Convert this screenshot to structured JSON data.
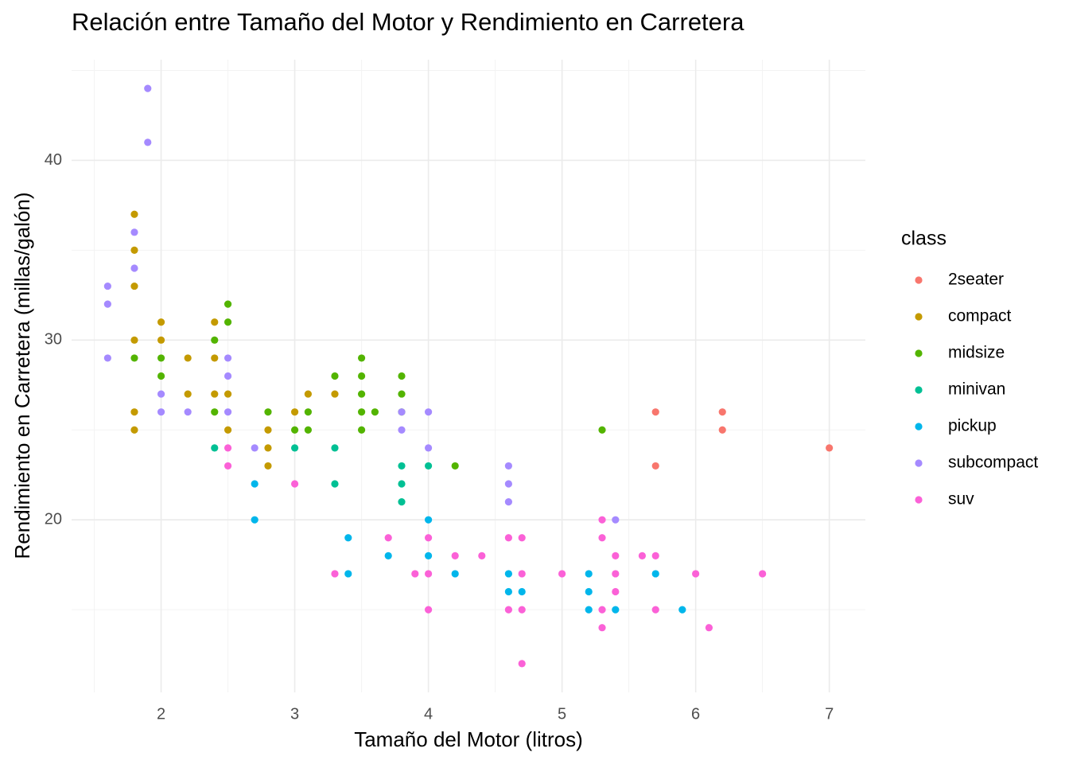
{
  "chart_data": {
    "type": "scatter",
    "title": "Relación entre Tamaño del Motor y Rendimiento en Carretera",
    "x_label": "Tamaño del Motor (litros)",
    "y_label": "Rendimiento en Carretera (millas/galón)",
    "legend_title": "class",
    "legend_position": "right",
    "grid": true,
    "xlim": [
      1.33,
      7.27
    ],
    "ylim": [
      10.4,
      45.6
    ],
    "xticks": [
      2,
      3,
      4,
      5,
      6,
      7
    ],
    "yticks": [
      20,
      30,
      40
    ],
    "x_minor_ticks": [
      1.5,
      2.5,
      3.5,
      4.5,
      5.5,
      6.5
    ],
    "y_minor_ticks": [
      15,
      25,
      35,
      45
    ],
    "series": [
      {
        "name": "2seater",
        "color": "#F8766D",
        "x": [
          5.7,
          6.2,
          6.2,
          5.7,
          7
        ],
        "y": [
          26,
          26,
          25,
          23,
          24
        ]
      },
      {
        "name": "compact",
        "color": "#C49A00",
        "x": [
          1.8,
          1.8,
          1.8,
          1.8,
          1.8,
          1.8,
          2,
          2,
          2.2,
          2.2,
          2.4,
          2.4,
          2.4,
          2.5,
          2.5,
          2.8,
          2.8,
          2.8,
          3,
          3.1,
          3.3
        ],
        "y": [
          37,
          35,
          33,
          30,
          26,
          25,
          31,
          30,
          29,
          27,
          31,
          29,
          27,
          27,
          25,
          25,
          24,
          23,
          26,
          27,
          27
        ]
      },
      {
        "name": "midsize",
        "color": "#53B400",
        "x": [
          1.8,
          2,
          2,
          2.4,
          2.4,
          2.5,
          2.5,
          2.8,
          3,
          3.1,
          3.1,
          3.3,
          3.5,
          3.5,
          3.5,
          3.5,
          3.5,
          3.6,
          3.8,
          3.8,
          3.8,
          4.2,
          5.3
        ],
        "y": [
          29,
          29,
          28,
          30,
          26,
          32,
          31,
          26,
          25,
          26,
          25,
          28,
          29,
          28,
          27,
          26,
          25,
          26,
          28,
          27,
          26,
          23,
          25
        ]
      },
      {
        "name": "minivan",
        "color": "#00C094",
        "x": [
          2.4,
          3,
          3.3,
          3.3,
          3.8,
          3.8,
          3.8,
          4
        ],
        "y": [
          24,
          24,
          24,
          22,
          23,
          22,
          21,
          23
        ]
      },
      {
        "name": "pickup",
        "color": "#00B6EB",
        "x": [
          2.7,
          2.7,
          3.4,
          3.4,
          3.7,
          4,
          4,
          4.2,
          4.6,
          4.6,
          4.7,
          5.2,
          5.2,
          5.2,
          5.4,
          5.7,
          5.9
        ],
        "y": [
          22,
          20,
          19,
          17,
          18,
          20,
          18,
          17,
          17,
          16,
          16,
          17,
          16,
          15,
          15,
          17,
          15
        ]
      },
      {
        "name": "subcompact",
        "color": "#A58AFF",
        "x": [
          1.6,
          1.6,
          1.6,
          1.8,
          1.8,
          1.9,
          1.9,
          2,
          2,
          2.2,
          2.5,
          2.5,
          2.5,
          2.7,
          3.8,
          3.8,
          4,
          4,
          4.6,
          4.6,
          4.6,
          5.4
        ],
        "y": [
          33,
          32,
          29,
          36,
          34,
          44,
          41,
          27,
          26,
          26,
          29,
          28,
          26,
          24,
          26,
          25,
          26,
          24,
          23,
          22,
          21,
          20
        ]
      },
      {
        "name": "suv",
        "color": "#FB61D7",
        "x": [
          2.5,
          2.5,
          3,
          3.3,
          3.7,
          3.9,
          4,
          4,
          4,
          4.2,
          4.4,
          4.6,
          4.6,
          4.7,
          4.7,
          4.7,
          4.7,
          5,
          5.3,
          5.3,
          5.3,
          5.3,
          5.4,
          5.4,
          5.4,
          5.6,
          5.7,
          5.7,
          6,
          6.1,
          6.5
        ],
        "y": [
          24,
          23,
          22,
          17,
          19,
          17,
          19,
          17,
          15,
          18,
          18,
          19,
          15,
          19,
          17,
          15,
          12,
          17,
          20,
          19,
          15,
          14,
          18,
          17,
          16,
          18,
          18,
          15,
          17,
          14,
          17
        ]
      }
    ]
  }
}
